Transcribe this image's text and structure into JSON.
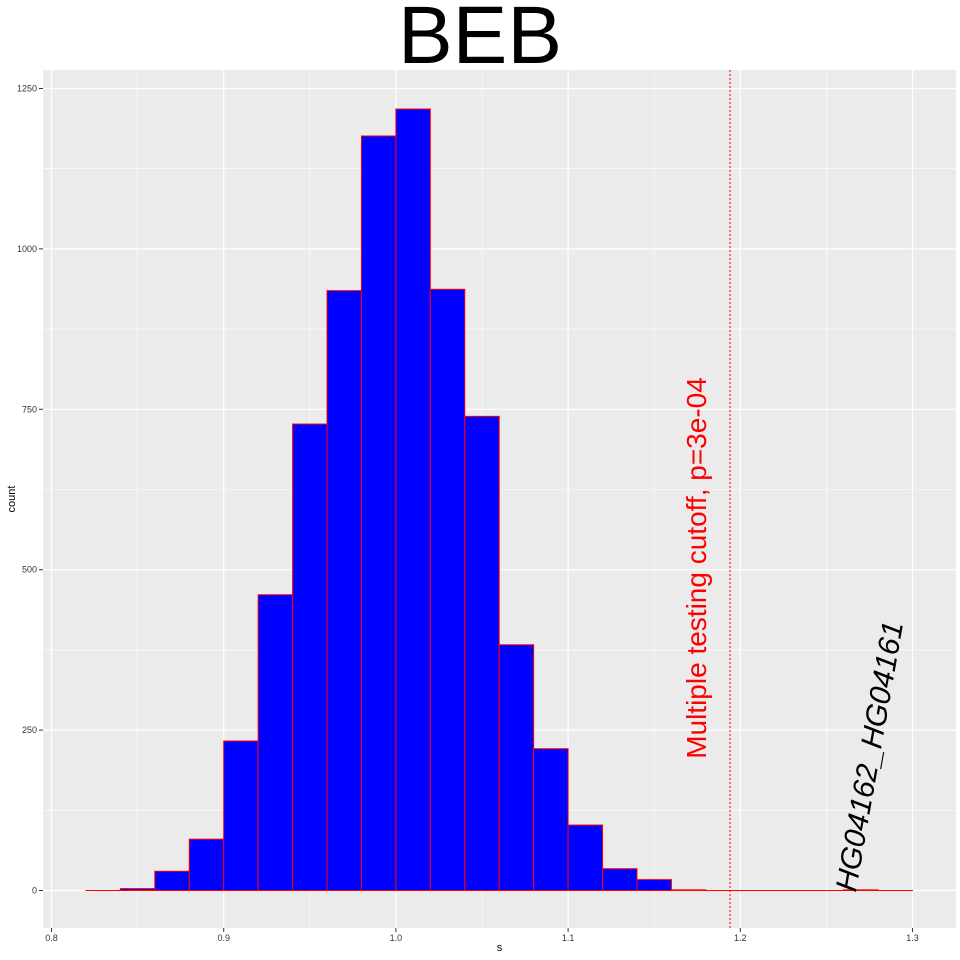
{
  "chart_data": {
    "type": "bar",
    "title": "BEB",
    "xlabel": "s",
    "ylabel": "count",
    "xlim": [
      0.79,
      1.325
    ],
    "ylim": [
      -60,
      1300
    ],
    "x_ticks": [
      0.8,
      0.9,
      1.0,
      1.1,
      1.2,
      1.3
    ],
    "x_tick_labels": [
      "0.8",
      "0.9",
      "1.0",
      "1.1",
      "1.2",
      "1.3"
    ],
    "y_ticks": [
      0,
      250,
      500,
      750,
      1000,
      1250
    ],
    "y_tick_labels": [
      "0",
      "250",
      "500",
      "750",
      "1000",
      "1250"
    ],
    "grid": true,
    "bin_width": 0.02,
    "bins": [
      {
        "x": 0.83,
        "count": 0
      },
      {
        "x": 0.85,
        "count": 3
      },
      {
        "x": 0.87,
        "count": 30
      },
      {
        "x": 0.89,
        "count": 80
      },
      {
        "x": 0.91,
        "count": 233
      },
      {
        "x": 0.93,
        "count": 461
      },
      {
        "x": 0.95,
        "count": 727
      },
      {
        "x": 0.97,
        "count": 935
      },
      {
        "x": 0.99,
        "count": 1176
      },
      {
        "x": 1.01,
        "count": 1218
      },
      {
        "x": 1.03,
        "count": 937
      },
      {
        "x": 1.05,
        "count": 739
      },
      {
        "x": 1.07,
        "count": 383
      },
      {
        "x": 1.09,
        "count": 221
      },
      {
        "x": 1.11,
        "count": 102
      },
      {
        "x": 1.13,
        "count": 34
      },
      {
        "x": 1.15,
        "count": 17
      },
      {
        "x": 1.17,
        "count": 1
      },
      {
        "x": 1.19,
        "count": 0
      },
      {
        "x": 1.21,
        "count": 0
      },
      {
        "x": 1.23,
        "count": 0
      },
      {
        "x": 1.25,
        "count": 0
      },
      {
        "x": 1.27,
        "count": 1
      },
      {
        "x": 1.29,
        "count": 0
      }
    ],
    "bar_fill": "#0000ff",
    "bar_outline": "#ff0000",
    "cutoff": {
      "x": 1.194,
      "label": "Multiple testing cutoff, p=3e-04",
      "color": "#ff0000"
    },
    "annotation": {
      "x": 1.275,
      "label": "HG04162_HG04161",
      "color": "#000000"
    },
    "panel_background": "#ebebeb",
    "grid_color": "#ffffff"
  }
}
